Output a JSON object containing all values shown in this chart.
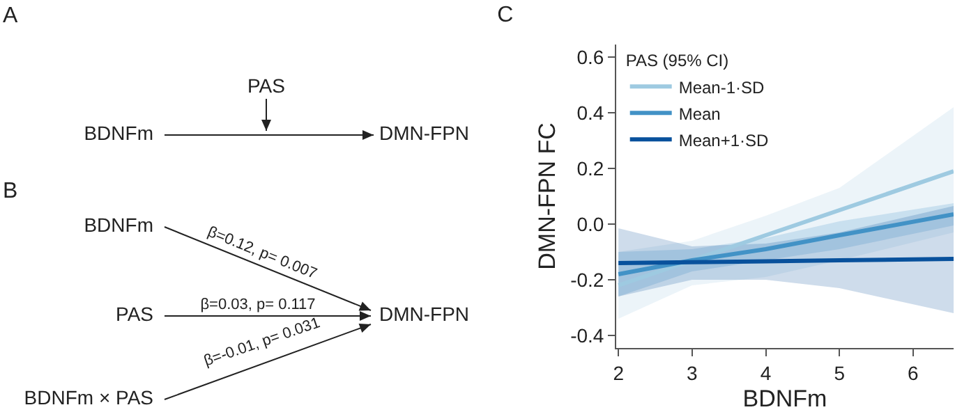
{
  "chart_data": [
    {
      "type": "other",
      "title": "A",
      "annotations": [
        "BDNFm",
        "PAS",
        "DMN-FPN"
      ]
    },
    {
      "type": "other",
      "title": "B",
      "annotations": [
        "BDNFm",
        "PAS",
        "BDNFm × PAS",
        "DMN-FPN",
        "β=0.12, p= 0.007",
        "β=0.03, p= 0.117",
        "β=-0.01, p= 0.031"
      ]
    },
    {
      "type": "line",
      "title": "C",
      "xlabel": "BDNFm",
      "ylabel": "DMN-FPN FC",
      "legend_title": "PAS (95% CI)",
      "legend": "top left",
      "grid": false,
      "marker": "none",
      "line_style": "solid",
      "x": [
        2,
        3,
        4,
        5,
        6.55
      ],
      "xlim": [
        1.97,
        6.55
      ],
      "xticks": [
        2,
        3,
        4,
        5,
        6
      ],
      "ylim": [
        -0.445,
        0.645
      ],
      "yticks": [
        -0.4,
        {
          "value": -0.2,
          "label": "-0.2"
        },
        {
          "value": 0,
          "label": "0.0"
        },
        0.2,
        0.4,
        0.6
      ],
      "series": [
        {
          "name": "Mean-1·SD",
          "color": "#9ecae1",
          "values": [
            -0.22,
            -0.13,
            -0.04,
            0.05,
            0.19
          ],
          "lower": [
            -0.34,
            -0.22,
            -0.19,
            -0.13,
            -0.03
          ],
          "upper": [
            -0.1,
            -0.06,
            0.03,
            0.13,
            0.42
          ]
        },
        {
          "name": "Mean",
          "color": "#4292c6",
          "values": [
            -0.18,
            -0.13,
            -0.09,
            -0.04,
            0.035
          ],
          "lower": [
            -0.26,
            -0.17,
            -0.13,
            -0.09,
            -0.005
          ],
          "upper": [
            -0.1,
            -0.09,
            -0.05,
            0.01,
            0.075
          ]
        },
        {
          "name": "Mean+1·SD",
          "color": "#08519c",
          "values": [
            -0.14,
            -0.137,
            -0.134,
            -0.13,
            -0.125
          ],
          "lower": [
            -0.26,
            -0.2,
            -0.2,
            -0.23,
            -0.32
          ],
          "upper": [
            -0.015,
            -0.08,
            -0.07,
            -0.03,
            0.065
          ]
        }
      ]
    }
  ]
}
